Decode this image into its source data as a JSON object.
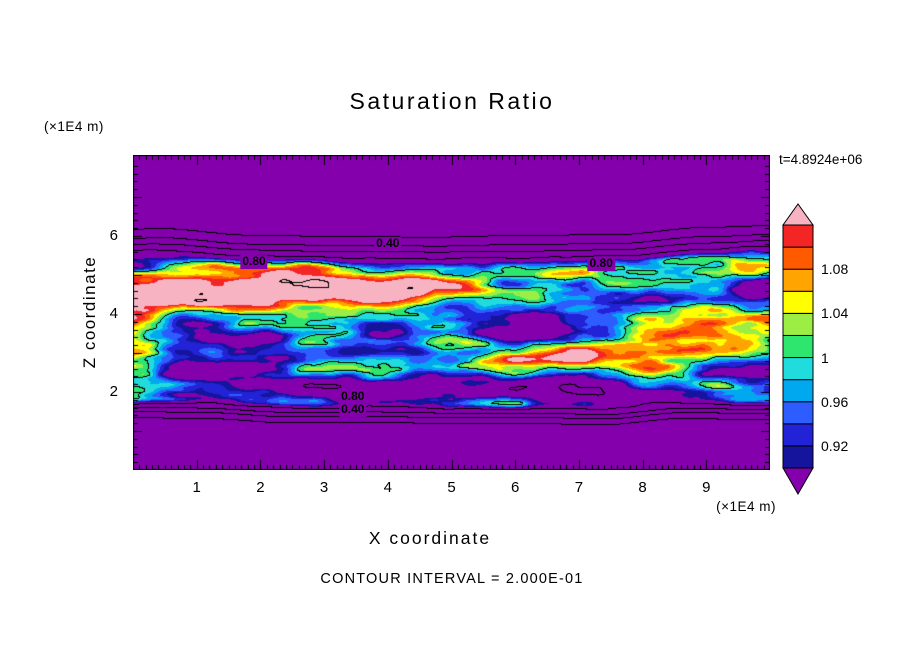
{
  "chart_data": {
    "type": "heatmap",
    "subtype": "filled_contour",
    "title": "Saturation Ratio",
    "xlabel": "X coordinate",
    "ylabel": "Z coordinate",
    "x_units": "(×1E4 m)",
    "z_units": "(×1E4 m)",
    "time_annotation": "t=4.8924e+06",
    "contour_interval_label": "CONTOUR INTERVAL = 2.000E-01",
    "contour_interval": 0.2,
    "x_range": [
      0,
      10
    ],
    "z_range": [
      0,
      8.1
    ],
    "x_ticks": [
      1,
      2,
      3,
      4,
      5,
      6,
      7,
      8,
      9
    ],
    "z_ticks": [
      2,
      4,
      6
    ],
    "contour_labels": [
      {
        "text": "0.40",
        "x": 4.0,
        "z": 5.8
      },
      {
        "text": "0.80",
        "x": 1.9,
        "z": 5.33
      },
      {
        "text": "0.80",
        "x": 7.35,
        "z": 5.28
      },
      {
        "text": "0.80",
        "x": 3.45,
        "z": 1.87
      },
      {
        "text": "0.40",
        "x": 3.45,
        "z": 1.53
      }
    ],
    "field_summary": {
      "description": "Saturation ratio is low (~0.2, purple background) everywhere except a turbulent horizontal band between z=1.8 and z=5.2 (x1E4 m) where values fluctuate around saturation (1.0), roughly between 0.88 and 1.13. Labeled line contours (interval 0.2) at 0.40 and 0.80 trace the transition zones above and below the band.",
      "band_z_bottom": 1.8,
      "band_z_top": 5.2,
      "background_value": 0.2,
      "band_value_min": 0.88,
      "band_value_max": 1.13
    },
    "colorbar": {
      "min": 0.9,
      "max": 1.12,
      "band_step": 0.02,
      "labels_bottom_to_top": [
        "0.92",
        "0.96",
        "1",
        "1.04",
        "1.08"
      ],
      "band_colors_bottom_to_top": [
        "#14149c",
        "#2222d6",
        "#2d5cff",
        "#00a8f0",
        "#21dcdc",
        "#2ee66e",
        "#9cee44",
        "#ffff00",
        "#ffa400",
        "#ff5a00",
        "#f42525"
      ],
      "below_min_color": "#8400ad",
      "above_max_color": "#f7b3c2"
    }
  }
}
